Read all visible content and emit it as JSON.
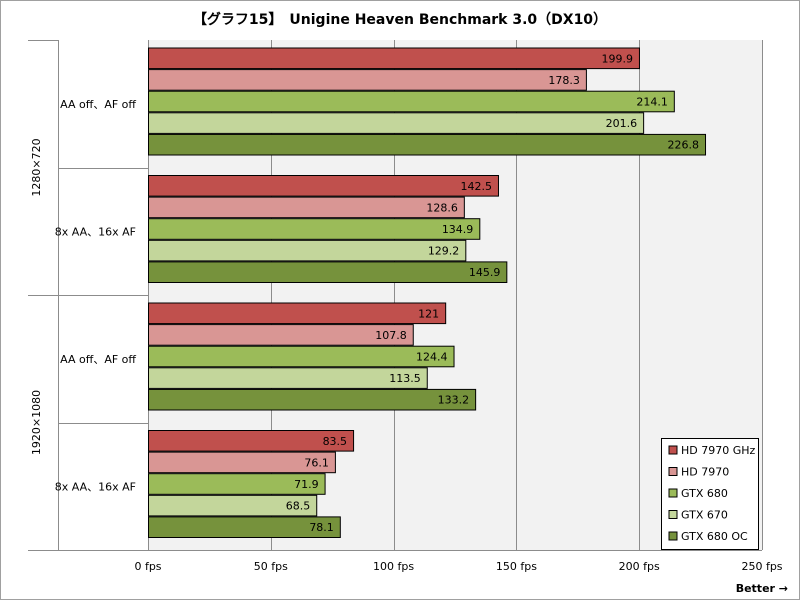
{
  "chart_data": {
    "type": "bar",
    "orientation": "horizontal",
    "title": "【グラフ15】　Unigine Heaven Benchmark 3.0（DX10）",
    "groups": [
      {
        "label": "1280×720",
        "subcategories": [
          "AA off、AF off",
          "8x AA、16x AF"
        ]
      },
      {
        "label": "1920×1080",
        "subcategories": [
          "AA off、AF off",
          "8x AA、16x AF"
        ]
      }
    ],
    "categories": [
      "1280×720 AA off、AF off",
      "1280×720 8x AA、16x AF",
      "1920×1080 AA off、AF off",
      "1920×1080 8x AA、16x AF"
    ],
    "series": [
      {
        "name": "HD 7970 GHz",
        "color": "#c0504d",
        "values": [
          199.9,
          142.5,
          121,
          83.5
        ]
      },
      {
        "name": "HD 7970",
        "color": "#d99694",
        "values": [
          178.3,
          128.6,
          107.8,
          76.1
        ]
      },
      {
        "name": "GTX 680",
        "color": "#9bbb59",
        "values": [
          214.1,
          134.9,
          124.4,
          71.9
        ]
      },
      {
        "name": "GTX 670",
        "color": "#c3d69b",
        "values": [
          201.6,
          129.2,
          113.5,
          68.5
        ]
      },
      {
        "name": "GTX 680 OC",
        "color": "#76923c",
        "values": [
          226.8,
          145.9,
          133.2,
          78.1
        ]
      }
    ],
    "xlim": [
      0,
      250
    ],
    "xticks": [
      0,
      50,
      100,
      150,
      200,
      250
    ],
    "xtick_labels": [
      "0 fps",
      "50 fps",
      "100 fps",
      "150 fps",
      "200 fps",
      "250 fps"
    ],
    "grid": true,
    "legend_position": "bottom-right",
    "annotation": "Better →"
  }
}
